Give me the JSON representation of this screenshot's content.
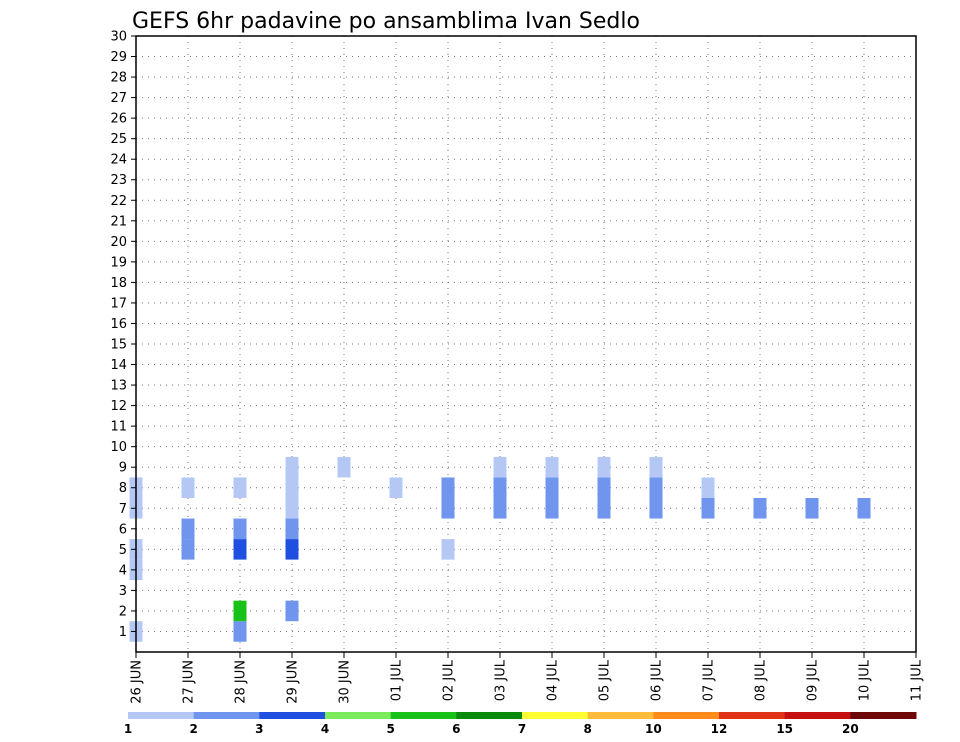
{
  "chart_data": {
    "type": "heatmap",
    "title": "GEFS 6hr padavine po ansamblima Ivan Sedlo",
    "xlabel": "",
    "ylabel": "",
    "x_tick_labels": [
      "26 JUN",
      "27 JUN",
      "28 JUN",
      "29 JUN",
      "30 JUN",
      "01 JUL",
      "02 JUL",
      "03 JUL",
      "04 JUL",
      "05 JUL",
      "06 JUL",
      "07 JUL",
      "08 JUL",
      "09 JUL",
      "10 JUL",
      "11 JUL"
    ],
    "y_tick_labels": [
      "1",
      "2",
      "3",
      "4",
      "5",
      "6",
      "7",
      "8",
      "9",
      "10",
      "11",
      "12",
      "13",
      "14",
      "15",
      "16",
      "17",
      "18",
      "19",
      "20",
      "21",
      "22",
      "23",
      "24",
      "25",
      "26",
      "27",
      "28",
      "29",
      "30"
    ],
    "x_range_days": [
      0,
      15
    ],
    "y_range": [
      0,
      30
    ],
    "grid": true,
    "step_hours": 6,
    "legend": {
      "placement": "bottom",
      "colors": [
        "#b5c8f5",
        "#6f95ee",
        "#1f4fe0",
        "#7cec5c",
        "#18c218",
        "#0a8a0a",
        "#ffff33",
        "#ffbb3a",
        "#ff8c1a",
        "#e03318",
        "#c41010",
        "#6e0808"
      ],
      "labels": [
        "1",
        "2",
        "3",
        "4",
        "5",
        "6",
        "7",
        "8",
        "10",
        "12",
        "15",
        "20"
      ]
    },
    "unit_note": "cell: [x in days since 26 JUN, ensemble member, precipitation class index 0-11]",
    "cells": [
      [
        0,
        1,
        0
      ],
      [
        2,
        1,
        1
      ],
      [
        3,
        2,
        1
      ],
      [
        2,
        2,
        4
      ],
      [
        0,
        4,
        0
      ],
      [
        1,
        5,
        1
      ],
      [
        0,
        5,
        0
      ],
      [
        2,
        5,
        2
      ],
      [
        3,
        5,
        2
      ],
      [
        6,
        5,
        0
      ],
      [
        2,
        6,
        1
      ],
      [
        3,
        6,
        1
      ],
      [
        1,
        6,
        1
      ],
      [
        0,
        7,
        0
      ],
      [
        3,
        7,
        0
      ],
      [
        6,
        7,
        1
      ],
      [
        7,
        7,
        1
      ],
      [
        8,
        7,
        1
      ],
      [
        9,
        7,
        1
      ],
      [
        10,
        7,
        1
      ],
      [
        11,
        7,
        1
      ],
      [
        12,
        7,
        1
      ],
      [
        13,
        7,
        1
      ],
      [
        14,
        7,
        1
      ],
      [
        0,
        8,
        0
      ],
      [
        1,
        8,
        0
      ],
      [
        2,
        8,
        0
      ],
      [
        3,
        8,
        0
      ],
      [
        5,
        8,
        0
      ],
      [
        6,
        8,
        1
      ],
      [
        7,
        8,
        1
      ],
      [
        8,
        8,
        1
      ],
      [
        9,
        8,
        1
      ],
      [
        10,
        8,
        1
      ],
      [
        11,
        8,
        0
      ],
      [
        2,
        8,
        0
      ],
      [
        3,
        9,
        0
      ],
      [
        4,
        9,
        0
      ],
      [
        7,
        9,
        0
      ],
      [
        8,
        9,
        0
      ],
      [
        9,
        9,
        0
      ],
      [
        10,
        9,
        0
      ]
    ]
  }
}
